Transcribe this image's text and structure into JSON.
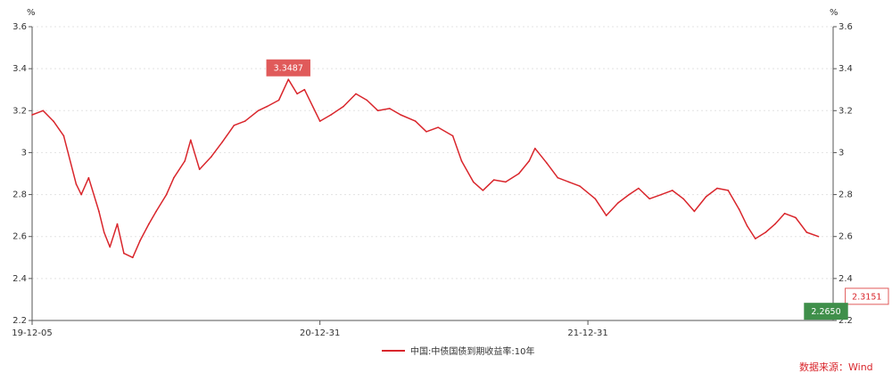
{
  "chart_data": {
    "type": "line",
    "yunit": "%",
    "ylim": [
      2.2,
      3.6
    ],
    "yticks": [
      "2.2",
      "2.4",
      "2.6",
      "2.8",
      "3",
      "3.2",
      "3.4",
      "3.6"
    ],
    "xlabels": [
      {
        "label": "19-12-05",
        "date": "2019-12-05"
      },
      {
        "label": "20-12-31",
        "date": "2020-12-31"
      },
      {
        "label": "21-12-31",
        "date": "2021-12-31"
      }
    ],
    "xlim": [
      "2019-12-05",
      "2022-11-30"
    ],
    "grid": true,
    "legend_position": "bottom-center",
    "series": [
      {
        "name": "中国:中债国债到期收益率:10年",
        "color": "#d9262c",
        "points": [
          [
            "2019-12-05",
            3.18
          ],
          [
            "2019-12-20",
            3.2
          ],
          [
            "2020-01-03",
            3.15
          ],
          [
            "2020-01-17",
            3.08
          ],
          [
            "2020-02-03",
            2.85
          ],
          [
            "2020-02-10",
            2.8
          ],
          [
            "2020-02-20",
            2.88
          ],
          [
            "2020-03-05",
            2.72
          ],
          [
            "2020-03-12",
            2.62
          ],
          [
            "2020-03-20",
            2.55
          ],
          [
            "2020-03-30",
            2.66
          ],
          [
            "2020-04-08",
            2.52
          ],
          [
            "2020-04-20",
            2.5
          ],
          [
            "2020-04-30",
            2.58
          ],
          [
            "2020-05-12",
            2.66
          ],
          [
            "2020-05-22",
            2.72
          ],
          [
            "2020-06-05",
            2.8
          ],
          [
            "2020-06-15",
            2.88
          ],
          [
            "2020-06-30",
            2.96
          ],
          [
            "2020-07-08",
            3.06
          ],
          [
            "2020-07-20",
            2.92
          ],
          [
            "2020-08-05",
            2.98
          ],
          [
            "2020-08-20",
            3.05
          ],
          [
            "2020-09-05",
            3.13
          ],
          [
            "2020-09-20",
            3.15
          ],
          [
            "2020-10-08",
            3.2
          ],
          [
            "2020-10-20",
            3.22
          ],
          [
            "2020-11-05",
            3.25
          ],
          [
            "2020-11-18",
            3.3487
          ],
          [
            "2020-11-30",
            3.28
          ],
          [
            "2020-12-10",
            3.3
          ],
          [
            "2020-12-31",
            3.15
          ],
          [
            "2021-01-15",
            3.18
          ],
          [
            "2021-02-01",
            3.22
          ],
          [
            "2021-02-18",
            3.28
          ],
          [
            "2021-03-05",
            3.25
          ],
          [
            "2021-03-20",
            3.2
          ],
          [
            "2021-04-05",
            3.21
          ],
          [
            "2021-04-20",
            3.18
          ],
          [
            "2021-05-10",
            3.15
          ],
          [
            "2021-05-25",
            3.1
          ],
          [
            "2021-06-10",
            3.12
          ],
          [
            "2021-06-30",
            3.08
          ],
          [
            "2021-07-12",
            2.96
          ],
          [
            "2021-07-28",
            2.86
          ],
          [
            "2021-08-10",
            2.82
          ],
          [
            "2021-08-25",
            2.87
          ],
          [
            "2021-09-10",
            2.86
          ],
          [
            "2021-09-28",
            2.9
          ],
          [
            "2021-10-12",
            2.96
          ],
          [
            "2021-10-20",
            3.02
          ],
          [
            "2021-11-05",
            2.95
          ],
          [
            "2021-11-20",
            2.88
          ],
          [
            "2021-12-05",
            2.86
          ],
          [
            "2021-12-20",
            2.84
          ],
          [
            "2022-01-10",
            2.78
          ],
          [
            "2022-01-25",
            2.7
          ],
          [
            "2022-02-10",
            2.76
          ],
          [
            "2022-02-25",
            2.8
          ],
          [
            "2022-03-10",
            2.83
          ],
          [
            "2022-03-25",
            2.78
          ],
          [
            "2022-04-10",
            2.8
          ],
          [
            "2022-04-25",
            2.82
          ],
          [
            "2022-05-10",
            2.78
          ],
          [
            "2022-05-25",
            2.72
          ],
          [
            "2022-06-10",
            2.79
          ],
          [
            "2022-06-25",
            2.83
          ],
          [
            "2022-07-10",
            2.82
          ],
          [
            "2022-07-25",
            2.73
          ],
          [
            "2022-08-05",
            2.65
          ],
          [
            "2022-08-16",
            2.59
          ],
          [
            "2022-08-30",
            2.62
          ],
          [
            "2022-09-12",
            2.66
          ],
          [
            "2022-09-25",
            2.71
          ],
          [
            "2022-10-10",
            2.69
          ],
          [
            "2022-10-25",
            2.62
          ],
          [
            "2022-11-10",
            2.6
          ]
        ]
      }
    ],
    "annotations": [
      {
        "text": "3.3487",
        "x": "2020-11-18",
        "y": 3.3487,
        "color": "#e05a5a",
        "style": "filled",
        "text_color": "#ffffff"
      },
      {
        "text": "2.3151",
        "x": "2022-11-30",
        "y": 2.3151,
        "color": "#e05a5a",
        "style": "outline",
        "text_color": "#d9262c"
      },
      {
        "text": "2.2650",
        "x": "2022-11-30",
        "y": 2.265,
        "color": "#3f8f4a",
        "style": "filled",
        "text_color": "#ffffff"
      }
    ]
  },
  "legend": {
    "label": "中国:中债国债到期收益率:10年"
  },
  "source": "数据来源：Wind"
}
